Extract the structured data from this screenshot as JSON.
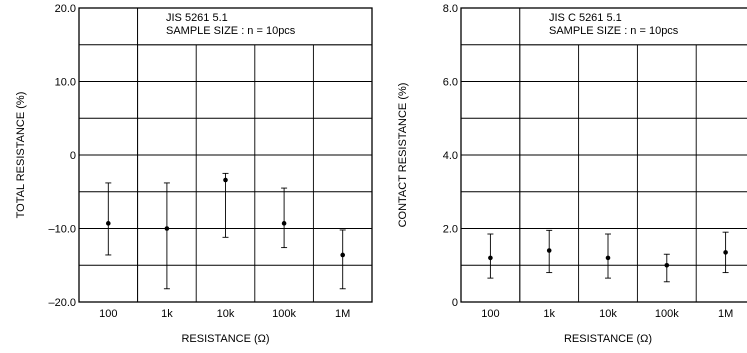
{
  "chart_data": [
    {
      "type": "scatter",
      "subtype": "error-bar",
      "note_lines": [
        "JIS  5261  5.1",
        "SAMPLE  SIZE : n = 10pcs"
      ],
      "xlabel": "RESISTANCE (Ω)",
      "ylabel": "TOTAL RESISTANCE (%)",
      "categories": [
        "100",
        "1k",
        "10k",
        "100k",
        "1M"
      ],
      "ylim": [
        -20,
        20
      ],
      "y_tick_values": [
        -20,
        -10,
        0,
        10,
        20
      ],
      "y_tick_labels": [
        "–20.0",
        "–10.0",
        "0",
        "10.0",
        "20.0"
      ],
      "grid": true,
      "series": [
        {
          "values": [
            -9.3,
            -10.0,
            -3.4,
            -9.3,
            -13.6
          ],
          "max": [
            -3.8,
            -3.8,
            -2.5,
            -4.5,
            -10.2
          ],
          "min": [
            -13.6,
            -18.2,
            -11.2,
            -12.6,
            -18.2
          ]
        }
      ]
    },
    {
      "type": "scatter",
      "subtype": "error-bar",
      "note_lines": [
        "JIS  C  5261  5.1",
        "SAMPLE  SIZE : n = 10pcs"
      ],
      "xlabel": "RESISTANCE (Ω)",
      "ylabel": "CONTACT RESISTANCE (%)",
      "categories": [
        "100",
        "1k",
        "10k",
        "100k",
        "1M"
      ],
      "ylim": [
        0,
        8
      ],
      "y_tick_values": [
        0,
        2,
        4,
        6,
        8
      ],
      "y_tick_labels": [
        "0",
        "2.0",
        "4.0",
        "6.0",
        "8.0"
      ],
      "grid": true,
      "series": [
        {
          "values": [
            1.2,
            1.4,
            1.2,
            1.0,
            1.35
          ],
          "max": [
            1.85,
            1.95,
            1.85,
            1.3,
            1.9
          ],
          "min": [
            0.65,
            0.8,
            0.65,
            0.55,
            0.8
          ]
        }
      ]
    }
  ]
}
